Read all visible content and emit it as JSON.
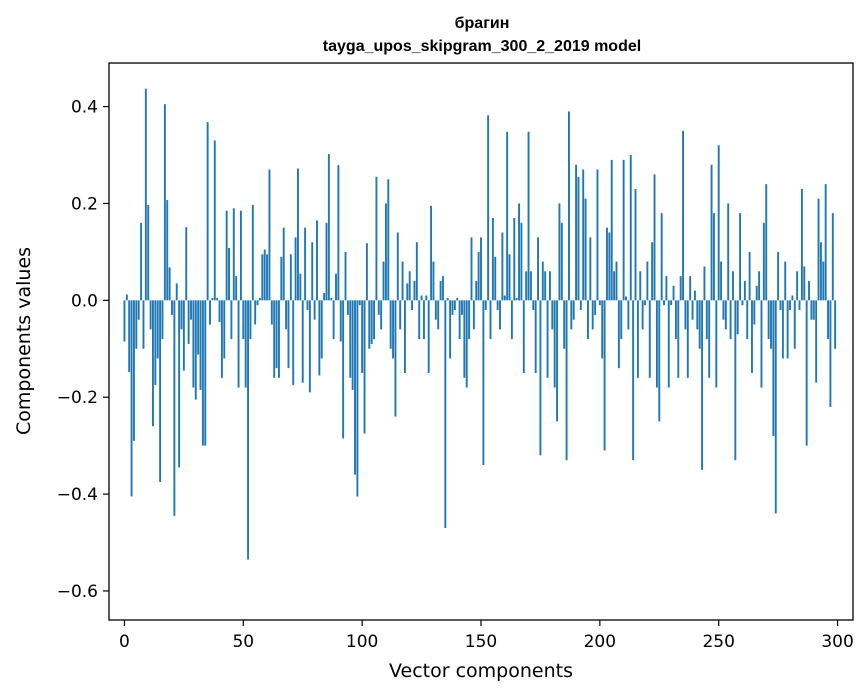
{
  "chart_data": {
    "type": "bar",
    "title": "брагин",
    "subtitle": "tayga_upos_skipgram_300_2_2019 model",
    "xlabel": "Vector components",
    "ylabel": "Components values",
    "xlim": [
      -6.5,
      306.5
    ],
    "ylim": [
      -0.66,
      0.49
    ],
    "xticks": [
      0,
      50,
      100,
      150,
      200,
      250,
      300
    ],
    "xtick_labels": [
      "0",
      "50",
      "100",
      "150",
      "200",
      "250",
      "300"
    ],
    "yticks": [
      -0.6,
      -0.4,
      -0.2,
      0.0,
      0.2,
      0.4
    ],
    "ytick_labels": [
      "−0.6",
      "−0.4",
      "−0.2",
      "0.0",
      "0.2",
      "0.4"
    ],
    "bar_color": "#1f77b4",
    "x": "indices 0..299",
    "values": [
      -0.085,
      0.012,
      -0.148,
      -0.405,
      -0.29,
      -0.1,
      -0.04,
      0.16,
      -0.1,
      0.437,
      0.197,
      -0.06,
      -0.26,
      -0.175,
      -0.12,
      -0.375,
      -0.08,
      0.405,
      0.207,
      0.068,
      -0.03,
      -0.445,
      0.035,
      -0.345,
      -0.06,
      -0.145,
      0.151,
      -0.09,
      -0.04,
      -0.18,
      -0.205,
      -0.112,
      -0.185,
      -0.3,
      -0.3,
      0.368,
      -0.05,
      0.005,
      0.33,
      0.005,
      -0.045,
      -0.16,
      -0.12,
      0.185,
      0.108,
      -0.08,
      0.19,
      0.05,
      -0.18,
      0.185,
      -0.08,
      -0.18,
      -0.535,
      -0.08,
      0.197,
      -0.05,
      -0.01,
      0.005,
      0.095,
      0.105,
      0.095,
      0.27,
      -0.05,
      -0.16,
      -0.14,
      -0.16,
      0.09,
      0.15,
      -0.06,
      -0.14,
      0.095,
      -0.175,
      0.13,
      0.272,
      0.055,
      -0.17,
      0.15,
      -0.02,
      -0.19,
      0.12,
      -0.04,
      0.165,
      -0.155,
      -0.12,
      0.015,
      0.16,
      0.302,
      0.005,
      -0.08,
      0.055,
      0.279,
      -0.085,
      -0.285,
      0.1,
      -0.03,
      -0.16,
      -0.185,
      -0.36,
      -0.405,
      -0.01,
      -0.15,
      -0.275,
      0.118,
      -0.1,
      -0.09,
      -0.08,
      0.255,
      -0.03,
      -0.06,
      0.08,
      0.2,
      0.25,
      -0.1,
      -0.12,
      -0.24,
      0.14,
      -0.06,
      0.08,
      -0.15,
      0.035,
      0.06,
      -0.02,
      0.04,
      0.12,
      -0.08,
      0.01,
      -0.08,
      0.01,
      -0.15,
      0.195,
      0.08,
      -0.04,
      -0.06,
      0.04,
      0.05,
      -0.47,
      0.005,
      -0.12,
      -0.03,
      -0.02,
      0.005,
      -0.08,
      -0.03,
      -0.16,
      -0.18,
      -0.08,
      0.13,
      -0.06,
      0.04,
      0.1,
      0.13,
      -0.34,
      -0.02,
      0.382,
      -0.08,
      0.17,
      0.09,
      -0.02,
      -0.06,
      0.14,
      0.01,
      0.348,
      0.095,
      -0.08,
      0.17,
      0.005,
      0.2,
      0.16,
      -0.15,
      0.06,
      0.348,
      0.06,
      -0.02,
      -0.15,
      0.13,
      -0.32,
      0.08,
      0.06,
      -0.16,
      0.06,
      -0.06,
      -0.18,
      -0.25,
      0.2,
      0.16,
      -0.1,
      -0.33,
      0.39,
      -0.06,
      -0.04,
      0.28,
      0.255,
      -0.02,
      0.27,
      0.21,
      -0.08,
      0.13,
      -0.06,
      -0.03,
      0.27,
      -0.01,
      -0.12,
      -0.31,
      0.15,
      0.14,
      0.29,
      0.06,
      0.08,
      -0.14,
      -0.08,
      0.29,
      0.008,
      -0.06,
      0.3,
      -0.33,
      0.23,
      -0.16,
      0.06,
      -0.06,
      -0.01,
      0.08,
      -0.16,
      0.12,
      0.26,
      -0.18,
      -0.25,
      0.18,
      -0.01,
      0.05,
      -0.18,
      -0.01,
      0.03,
      -0.08,
      -0.16,
      0.05,
      0.35,
      -0.06,
      -0.16,
      0.05,
      -0.04,
      0.02,
      -0.06,
      -0.1,
      -0.35,
      0.07,
      -0.08,
      -0.16,
      0.28,
      0.18,
      -0.18,
      0.32,
      0.08,
      -0.04,
      -0.06,
      0.2,
      -0.08,
      0.06,
      -0.33,
      -0.07,
      0.18,
      -0.01,
      0.04,
      -0.08,
      0.1,
      -0.15,
      -0.05,
      0.03,
      0.06,
      -0.18,
      0.16,
      0.24,
      -0.08,
      -0.1,
      -0.28,
      -0.44,
      0.1,
      -0.02,
      -0.12,
      0.08,
      -0.12,
      -0.02,
      0.01,
      -0.1,
      0.06,
      -0.02,
      0.23,
      0.07,
      -0.3,
      0.04,
      -0.04,
      -0.04,
      -0.17,
      0.21,
      0.12,
      0.08,
      0.24,
      -0.08,
      -0.22,
      0.18,
      -0.1
    ]
  }
}
